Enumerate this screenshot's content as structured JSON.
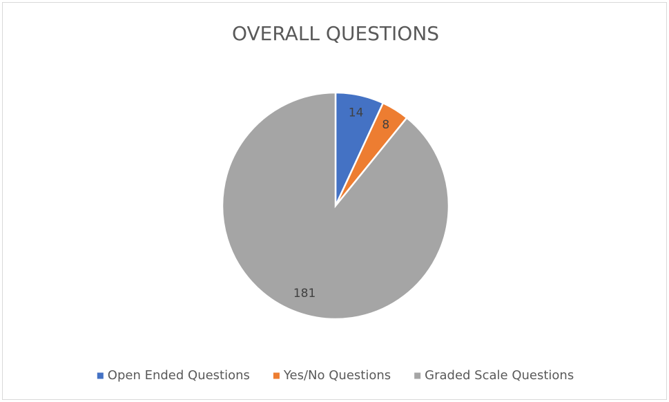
{
  "chart_data": {
    "type": "pie",
    "title": "OVERALL QUESTIONS",
    "categories": [
      "Open Ended Questions",
      "Yes/No Questions",
      "Graded Scale Questions"
    ],
    "values": [
      14,
      8,
      181
    ],
    "colors": [
      "#4472c4",
      "#ed7d31",
      "#a5a5a5"
    ],
    "legend": "bottom"
  }
}
